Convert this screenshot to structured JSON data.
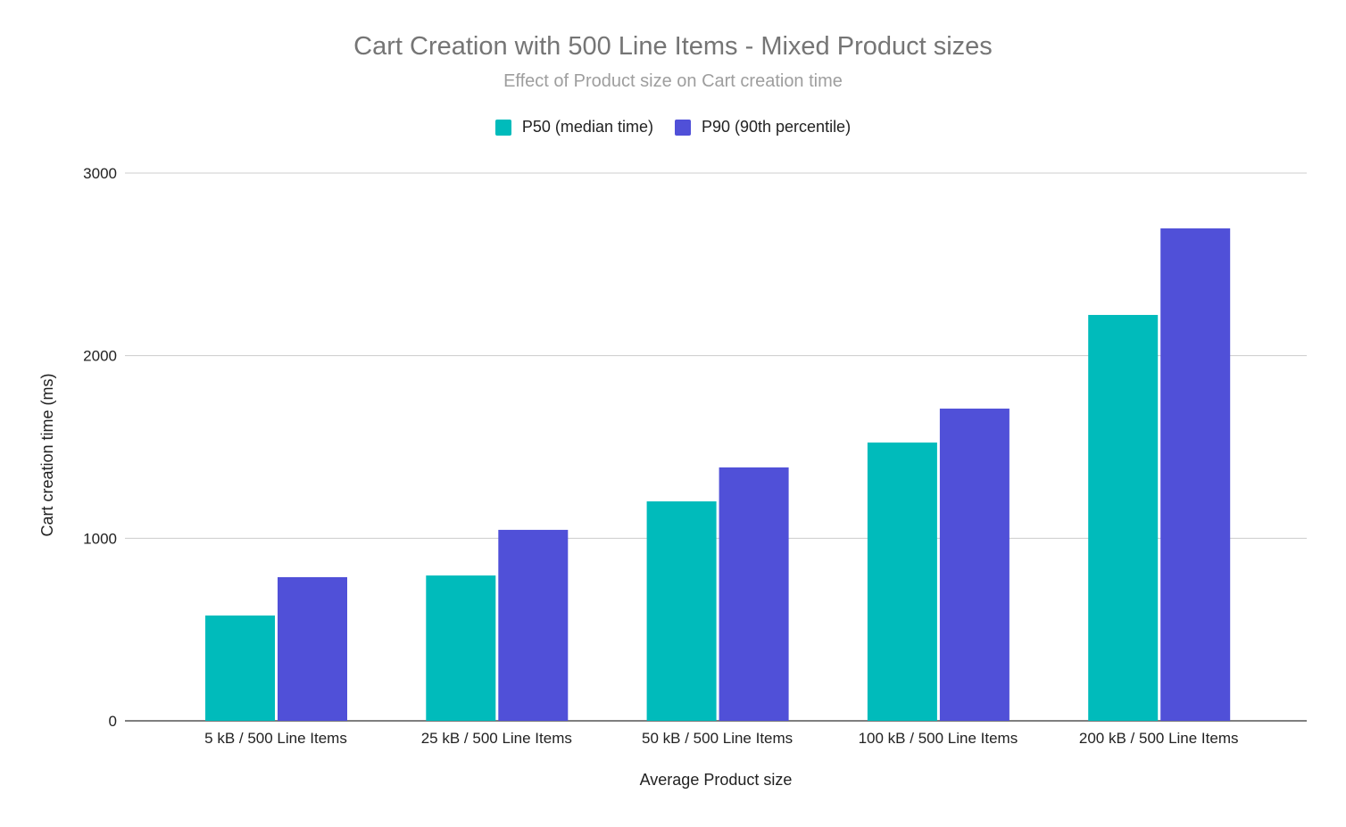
{
  "chart_data": {
    "type": "bar",
    "title": "Cart Creation with 500 Line Items - Mixed Product sizes",
    "subtitle": "Effect of Product size on Cart creation time",
    "xlabel": "Average Product size",
    "ylabel": "Cart creation time (ms)",
    "ylim": [
      0,
      3000
    ],
    "yticks": [
      0,
      1000,
      2000,
      3000
    ],
    "grid": true,
    "legend_position": "top",
    "categories": [
      "5 kB / 500 Line Items",
      "25 kB / 500 Line Items",
      "50 kB / 500 Line Items",
      "100 kB / 500 Line Items",
      "200 kB / 500 Line Items"
    ],
    "series": [
      {
        "name": "P50 (median time)",
        "color": "#00BBBB",
        "values": [
          577,
          796,
          1202,
          1524,
          2223
        ]
      },
      {
        "name": "P90 (90th percentile)",
        "color": "#5050D8",
        "values": [
          787,
          1046,
          1388,
          1710,
          2697
        ]
      }
    ]
  }
}
